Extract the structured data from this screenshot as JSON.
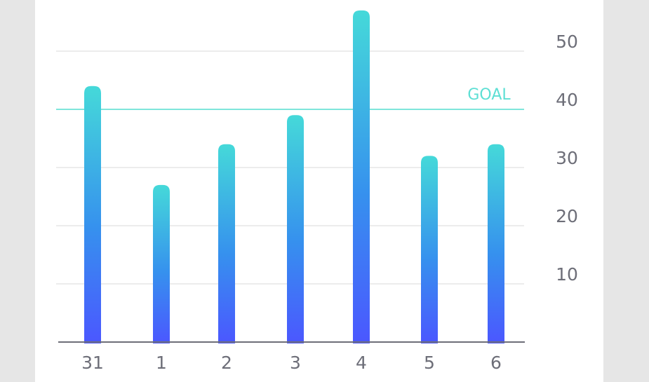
{
  "chart_data": {
    "type": "bar",
    "categories": [
      "31",
      "1",
      "2",
      "3",
      "4",
      "5",
      "6"
    ],
    "values": [
      44,
      27,
      34,
      39,
      57,
      32,
      34
    ],
    "ylim": [
      0,
      58
    ],
    "yticks": [
      10,
      20,
      30,
      40,
      50
    ],
    "grid": true,
    "goal": {
      "label": "GOAL",
      "value": 40
    }
  }
}
